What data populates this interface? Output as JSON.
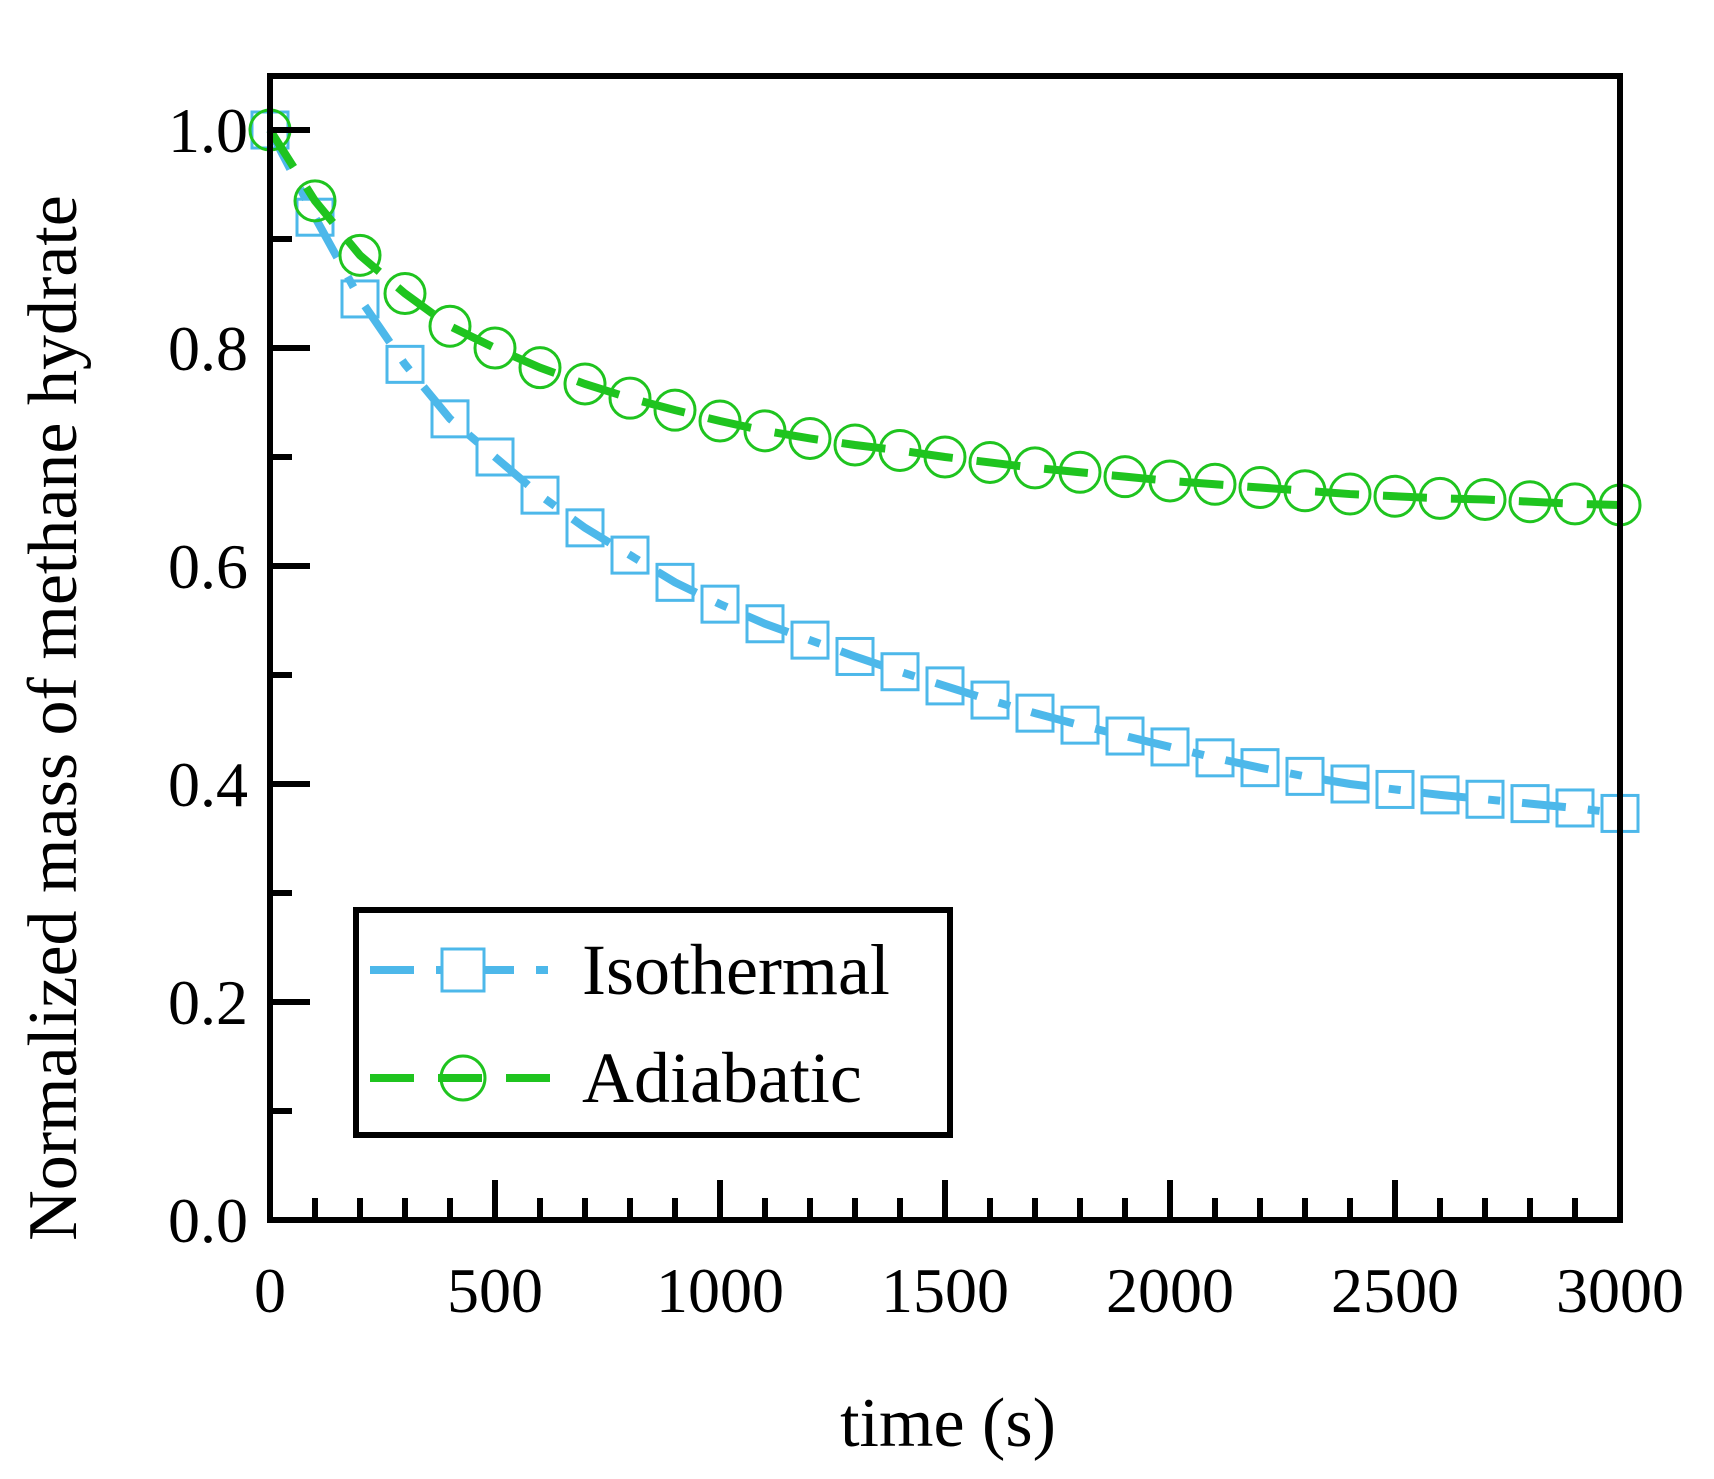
{
  "chart_data": {
    "type": "line",
    "title": "",
    "xlabel": "time (s)",
    "ylabel": "Normalized mass of methane hydrate",
    "xlim": [
      0,
      3000
    ],
    "ylim": [
      0.0,
      1.05
    ],
    "xticks": [
      0,
      500,
      1000,
      1500,
      2000,
      2500,
      3000
    ],
    "xtick_labels": [
      "0",
      "500",
      "1000",
      "1500",
      "2000",
      "2500",
      "3000"
    ],
    "yticks": [
      0.0,
      0.2,
      0.4,
      0.6,
      0.8,
      1.0
    ],
    "ytick_labels": [
      "0.0",
      "0.2",
      "0.4",
      "0.6",
      "0.8",
      "1.0"
    ],
    "grid": false,
    "legend_position": "bottom-left",
    "series": [
      {
        "name": "Isothermal",
        "color": "#4db8ea",
        "marker": "square",
        "line_style": "dash-dot",
        "x": [
          0,
          100,
          200,
          300,
          400,
          500,
          600,
          700,
          800,
          900,
          1000,
          1100,
          1200,
          1300,
          1400,
          1500,
          1600,
          1700,
          1800,
          1900,
          2000,
          2100,
          2200,
          2300,
          2400,
          2500,
          2600,
          2700,
          2800,
          2900,
          3000
        ],
        "y": [
          1.0,
          0.92,
          0.845,
          0.785,
          0.735,
          0.7,
          0.665,
          0.635,
          0.61,
          0.585,
          0.565,
          0.547,
          0.532,
          0.517,
          0.503,
          0.49,
          0.477,
          0.465,
          0.454,
          0.444,
          0.434,
          0.424,
          0.415,
          0.407,
          0.4,
          0.395,
          0.39,
          0.386,
          0.382,
          0.378,
          0.373
        ]
      },
      {
        "name": "Adiabatic",
        "color": "#1fc41f",
        "marker": "circle",
        "line_style": "dash",
        "x": [
          0,
          100,
          200,
          300,
          400,
          500,
          600,
          700,
          800,
          900,
          1000,
          1100,
          1200,
          1300,
          1400,
          1500,
          1600,
          1700,
          1800,
          1900,
          2000,
          2100,
          2200,
          2300,
          2400,
          2500,
          2600,
          2700,
          2800,
          2900,
          3000
        ],
        "y": [
          1.0,
          0.935,
          0.885,
          0.85,
          0.82,
          0.8,
          0.782,
          0.767,
          0.754,
          0.743,
          0.733,
          0.724,
          0.717,
          0.711,
          0.706,
          0.7,
          0.695,
          0.69,
          0.686,
          0.682,
          0.678,
          0.675,
          0.672,
          0.669,
          0.666,
          0.664,
          0.662,
          0.661,
          0.659,
          0.657,
          0.656
        ]
      }
    ]
  }
}
